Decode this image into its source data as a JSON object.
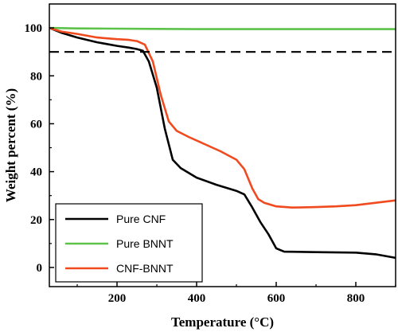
{
  "chart_data": {
    "type": "line",
    "xlabel": "Temperature (°C)",
    "ylabel": "Weight percent (%)",
    "xlim": [
      30,
      900
    ],
    "ylim": [
      -8,
      110
    ],
    "x_ticks": [
      200,
      400,
      600,
      800
    ],
    "y_ticks": [
      0,
      20,
      40,
      60,
      80,
      100
    ],
    "grid": false,
    "legend_position": "bottom-left",
    "reference_line": {
      "y": 90,
      "style": "dashed",
      "color": "#000000"
    },
    "series": [
      {
        "name": "Pure CNF",
        "color": "#000000",
        "x": [
          30,
          60,
          100,
          150,
          200,
          230,
          250,
          265,
          280,
          300,
          320,
          340,
          360,
          400,
          450,
          500,
          520,
          540,
          560,
          580,
          600,
          620,
          700,
          800,
          850,
          900
        ],
        "y": [
          100,
          98,
          96,
          94,
          92.5,
          91.8,
          91.2,
          90.5,
          86,
          75,
          58,
          45,
          41.5,
          37.5,
          34.5,
          32,
          30.5,
          25,
          19,
          14,
          8,
          6.6,
          6.4,
          6.2,
          5.5,
          4
        ]
      },
      {
        "name": "Pure BNNT",
        "color": "#5cc24a",
        "x": [
          30,
          100,
          200,
          300,
          400,
          500,
          600,
          700,
          800,
          900
        ],
        "y": [
          100,
          99.8,
          99.7,
          99.6,
          99.5,
          99.5,
          99.5,
          99.5,
          99.5,
          99.5
        ]
      },
      {
        "name": "CNF-BNNT",
        "color": "#f04a1e",
        "x": [
          30,
          60,
          100,
          150,
          200,
          230,
          250,
          270,
          290,
          310,
          330,
          350,
          380,
          420,
          460,
          500,
          520,
          540,
          555,
          570,
          600,
          640,
          700,
          750,
          800,
          850,
          900
        ],
        "y": [
          100,
          98.5,
          97.5,
          96,
          95.3,
          95,
          94.5,
          93,
          86,
          72,
          61,
          57,
          54.5,
          51.5,
          48.5,
          45,
          41,
          33,
          28.5,
          27,
          25.5,
          25,
          25.2,
          25.5,
          26,
          27,
          28
        ]
      }
    ]
  }
}
